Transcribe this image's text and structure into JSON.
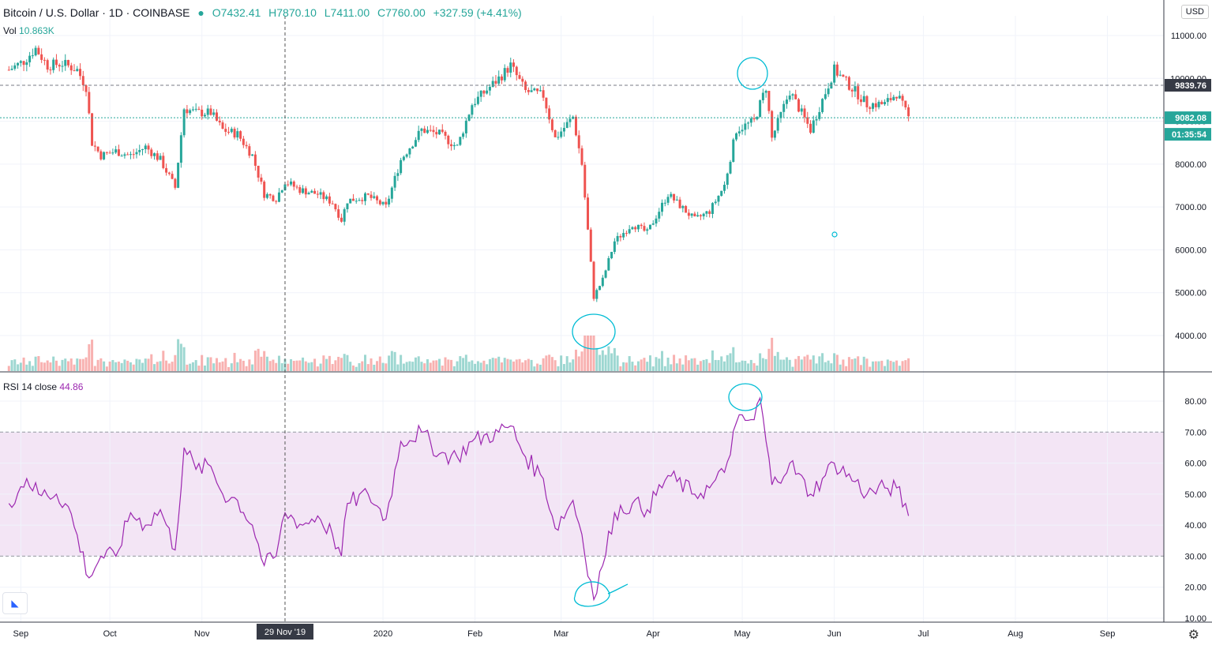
{
  "header": {
    "symbol": "Bitcoin / U.S. Dollar · 1D · COINBASE",
    "open": "O7432.41",
    "high": "H7870.10",
    "low": "L7411.00",
    "close": "C7760.00",
    "change": "+327.59 (+4.41%)"
  },
  "volume_legend": {
    "label": "Vol",
    "value": "10.863K"
  },
  "rsi_legend": {
    "label": "RSI 14 close",
    "value": "44.86"
  },
  "currency": "USD",
  "price_labels": {
    "h_line": "9839.76",
    "last_price": "9082.08",
    "countdown": "01:35:54"
  },
  "crosshair_date": "29 Nov '19",
  "colors": {
    "up": "#26a69a",
    "down": "#ef5350",
    "rsi": "#9c27b0",
    "rsi_band": "#f3e5f5",
    "annotation": "#00bcd4"
  },
  "chart_data": [
    {
      "type": "candlestick",
      "title": "Bitcoin / U.S. Dollar · 1D · COINBASE",
      "ylim": [
        3500,
        11100
      ],
      "y_ticks": [
        4000,
        5000,
        6000,
        7000,
        8000,
        9000,
        10000,
        11000
      ],
      "x_ticks": [
        "Sep",
        "Oct",
        "Nov",
        "2020",
        "Feb",
        "Mar",
        "Apr",
        "May",
        "Jun",
        "Jul",
        "Aug",
        "Sep"
      ],
      "close_path": [
        [
          "2019-08-28",
          10200
        ],
        [
          "2019-09-02",
          10400
        ],
        [
          "2019-09-06",
          10700
        ],
        [
          "2019-09-10",
          10300
        ],
        [
          "2019-09-15",
          10350
        ],
        [
          "2019-09-20",
          10200
        ],
        [
          "2019-09-23",
          9800
        ],
        [
          "2019-09-25",
          8500
        ],
        [
          "2019-09-28",
          8200
        ],
        [
          "2019-10-03",
          8300
        ],
        [
          "2019-10-08",
          8200
        ],
        [
          "2019-10-13",
          8400
        ],
        [
          "2019-10-18",
          8100
        ],
        [
          "2019-10-23",
          7450
        ],
        [
          "2019-10-26",
          9300
        ],
        [
          "2019-10-30",
          9200
        ],
        [
          "2019-11-04",
          9200
        ],
        [
          "2019-11-08",
          8800
        ],
        [
          "2019-11-13",
          8700
        ],
        [
          "2019-11-18",
          8200
        ],
        [
          "2019-11-22",
          7300
        ],
        [
          "2019-11-26",
          7200
        ],
        [
          "2019-11-29",
          7600
        ],
        [
          "2019-12-04",
          7400
        ],
        [
          "2019-12-10",
          7300
        ],
        [
          "2019-12-15",
          7100
        ],
        [
          "2019-12-18",
          6700
        ],
        [
          "2019-12-20",
          7150
        ],
        [
          "2019-12-27",
          7250
        ],
        [
          "2020-01-02",
          7000
        ],
        [
          "2020-01-07",
          8100
        ],
        [
          "2020-01-14",
          8800
        ],
        [
          "2020-01-20",
          8700
        ],
        [
          "2020-01-26",
          8400
        ],
        [
          "2020-01-31",
          9400
        ],
        [
          "2020-02-09",
          10000
        ],
        [
          "2020-02-13",
          10300
        ],
        [
          "2020-02-18",
          9700
        ],
        [
          "2020-02-24",
          9600
        ],
        [
          "2020-02-28",
          8600
        ],
        [
          "2020-03-05",
          9100
        ],
        [
          "2020-03-08",
          8000
        ],
        [
          "2020-03-12",
          4900
        ],
        [
          "2020-03-15",
          5300
        ],
        [
          "2020-03-19",
          6200
        ],
        [
          "2020-03-25",
          6600
        ],
        [
          "2020-03-30",
          6400
        ],
        [
          "2020-04-06",
          7300
        ],
        [
          "2020-04-15",
          6700
        ],
        [
          "2020-04-20",
          6900
        ],
        [
          "2020-04-25",
          7500
        ],
        [
          "2020-04-29",
          8800
        ],
        [
          "2020-05-05",
          9000
        ],
        [
          "2020-05-09",
          9800
        ],
        [
          "2020-05-11",
          8600
        ],
        [
          "2020-05-17",
          9700
        ],
        [
          "2020-05-24",
          8800
        ],
        [
          "2020-05-28",
          9500
        ],
        [
          "2020-06-01",
          10200
        ],
        [
          "2020-06-08",
          9700
        ],
        [
          "2020-06-12",
          9400
        ],
        [
          "2020-06-18",
          9400
        ],
        [
          "2020-06-22",
          9650
        ],
        [
          "2020-06-26",
          9082
        ]
      ]
    },
    {
      "type": "line",
      "title": "RSI 14 close",
      "ylim": [
        10,
        85
      ],
      "y_ticks": [
        10,
        20,
        30,
        40,
        50,
        60,
        70,
        80
      ],
      "bands": [
        30,
        70
      ],
      "series": [
        {
          "name": "RSI 14 close",
          "points": [
            [
              "2019-08-28",
              47
            ],
            [
              "2019-09-03",
              55
            ],
            [
              "2019-09-07",
              50
            ],
            [
              "2019-09-13",
              50
            ],
            [
              "2019-09-17",
              46
            ],
            [
              "2019-09-24",
              23
            ],
            [
              "2019-09-28",
              30
            ],
            [
              "2019-10-03",
              30
            ],
            [
              "2019-10-08",
              44
            ],
            [
              "2019-10-13",
              40
            ],
            [
              "2019-10-18",
              45
            ],
            [
              "2019-10-23",
              32
            ],
            [
              "2019-10-26",
              65
            ],
            [
              "2019-10-30",
              58
            ],
            [
              "2019-11-04",
              59
            ],
            [
              "2019-11-08",
              50
            ],
            [
              "2019-11-13",
              48
            ],
            [
              "2019-11-18",
              40
            ],
            [
              "2019-11-22",
              27
            ],
            [
              "2019-11-26",
              30
            ],
            [
              "2019-11-29",
              44
            ],
            [
              "2019-12-05",
              40
            ],
            [
              "2019-12-10",
              43
            ],
            [
              "2019-12-15",
              37
            ],
            [
              "2019-12-18",
              30
            ],
            [
              "2019-12-20",
              47
            ],
            [
              "2019-12-27",
              50
            ],
            [
              "2020-01-02",
              42
            ],
            [
              "2020-01-07",
              67
            ],
            [
              "2020-01-14",
              70
            ],
            [
              "2020-01-20",
              63
            ],
            [
              "2020-01-26",
              62
            ],
            [
              "2020-01-31",
              67
            ],
            [
              "2020-02-09",
              70
            ],
            [
              "2020-02-13",
              72
            ],
            [
              "2020-02-18",
              62
            ],
            [
              "2020-02-24",
              55
            ],
            [
              "2020-02-28",
              39
            ],
            [
              "2020-03-05",
              48
            ],
            [
              "2020-03-08",
              37
            ],
            [
              "2020-03-12",
              16
            ],
            [
              "2020-03-15",
              27
            ],
            [
              "2020-03-19",
              44
            ],
            [
              "2020-03-25",
              47
            ],
            [
              "2020-03-30",
              45
            ],
            [
              "2020-04-06",
              56
            ],
            [
              "2020-04-15",
              50
            ],
            [
              "2020-04-20",
              52
            ],
            [
              "2020-04-25",
              57
            ],
            [
              "2020-04-29",
              73
            ],
            [
              "2020-05-05",
              74
            ],
            [
              "2020-05-07",
              81
            ],
            [
              "2020-05-11",
              53
            ],
            [
              "2020-05-17",
              60
            ],
            [
              "2020-05-24",
              50
            ],
            [
              "2020-05-28",
              55
            ],
            [
              "2020-06-01",
              60
            ],
            [
              "2020-06-08",
              54
            ],
            [
              "2020-06-12",
              50
            ],
            [
              "2020-06-18",
              52
            ],
            [
              "2020-06-22",
              52
            ],
            [
              "2020-06-26",
              43
            ]
          ]
        }
      ]
    }
  ]
}
